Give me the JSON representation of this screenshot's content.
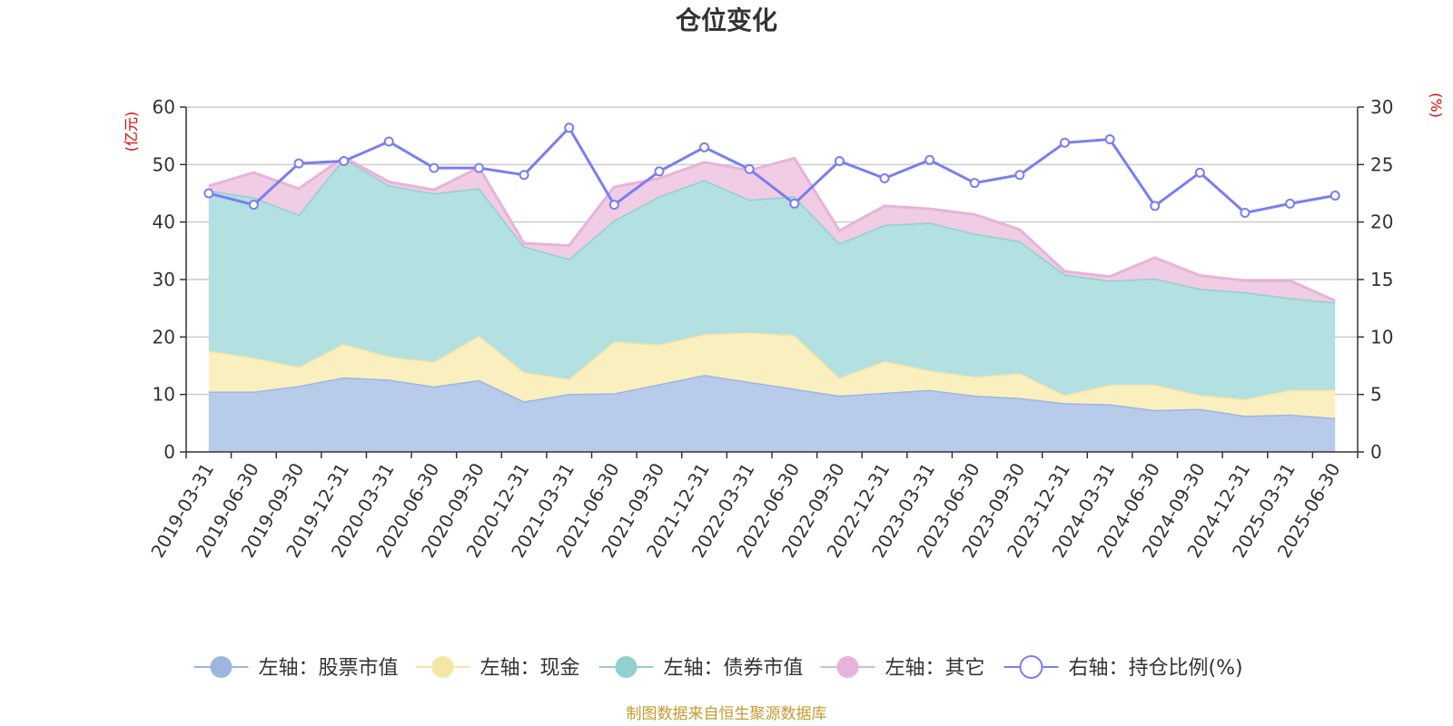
{
  "chart_data": {
    "type": "area",
    "title": "仓位变化",
    "left_axis_unit": "(亿元)",
    "right_axis_unit": "(%)",
    "left_ylim": [
      0,
      60
    ],
    "left_ticks": [
      0,
      10,
      20,
      30,
      40,
      50,
      60
    ],
    "right_ylim": [
      0,
      30
    ],
    "right_ticks": [
      0,
      5,
      10,
      15,
      20,
      25,
      30
    ],
    "grid": true,
    "legend_position": "bottom",
    "stacked": true,
    "categories": [
      "2019-03-31",
      "2019-06-30",
      "2019-09-30",
      "2019-12-31",
      "2020-03-31",
      "2020-06-30",
      "2020-09-30",
      "2020-12-31",
      "2021-03-31",
      "2021-06-30",
      "2021-09-30",
      "2021-12-31",
      "2022-03-31",
      "2022-06-30",
      "2022-09-30",
      "2022-12-31",
      "2023-03-31",
      "2023-06-30",
      "2023-09-30",
      "2023-12-31",
      "2024-03-31",
      "2024-06-30",
      "2024-09-30",
      "2024-12-31",
      "2025-03-31",
      "2025-06-30"
    ],
    "series": [
      {
        "name": "左轴：股票市值",
        "axis": "left",
        "color": "#9cb6e0",
        "fill": "#b8cbea",
        "values": [
          10.5,
          10.5,
          11.5,
          13.0,
          12.6,
          11.4,
          12.5,
          8.8,
          10.1,
          10.2,
          11.8,
          13.4,
          12.2,
          11.0,
          9.8,
          10.3,
          10.8,
          9.8,
          9.4,
          8.5,
          8.3,
          7.3,
          7.5,
          6.3,
          6.5,
          5.9
        ]
      },
      {
        "name": "左轴：现金",
        "axis": "left",
        "color": "#f6e6a4",
        "fill": "#faefbf",
        "values": [
          7.1,
          5.9,
          3.3,
          5.8,
          4.0,
          4.3,
          7.7,
          5.1,
          2.6,
          9.0,
          6.9,
          7.1,
          8.6,
          9.3,
          3.1,
          5.5,
          3.4,
          3.3,
          4.3,
          1.4,
          3.4,
          4.4,
          2.4,
          2.9,
          4.3,
          4.9
        ]
      },
      {
        "name": "左轴：债券市值",
        "axis": "left",
        "color": "#92cfcf",
        "fill": "#b3e0e0",
        "values": [
          27.9,
          27.9,
          26.5,
          32.3,
          29.8,
          29.3,
          25.7,
          21.9,
          20.9,
          21.1,
          25.8,
          26.8,
          23.1,
          24.2,
          23.4,
          23.7,
          25.7,
          24.9,
          23.0,
          21.0,
          18.1,
          18.5,
          18.5,
          18.6,
          16.0,
          15.2
        ]
      },
      {
        "name": "左轴：其它",
        "axis": "left",
        "color": "#e6b4d8",
        "fill": "#f0cde5",
        "values": [
          0.8,
          4.3,
          4.5,
          0.2,
          0.6,
          0.6,
          3.6,
          0.5,
          2.3,
          5.8,
          3.1,
          3.1,
          5.1,
          6.6,
          2.2,
          3.3,
          2.4,
          3.3,
          2.0,
          0.5,
          0.7,
          3.6,
          2.3,
          2.0,
          3.0,
          0.3
        ]
      },
      {
        "name": "右轴：持仓比例(%)",
        "axis": "right",
        "color": "#7b7ef0",
        "values": [
          22.5,
          21.5,
          25.1,
          25.3,
          27.0,
          24.7,
          24.7,
          24.1,
          28.2,
          21.5,
          24.4,
          26.5,
          24.6,
          21.6,
          25.3,
          23.8,
          25.4,
          23.4,
          24.1,
          26.9,
          27.2,
          21.4,
          24.3,
          20.8,
          21.6,
          22.3
        ]
      }
    ]
  },
  "source_note": "制图数据来自恒生聚源数据库"
}
